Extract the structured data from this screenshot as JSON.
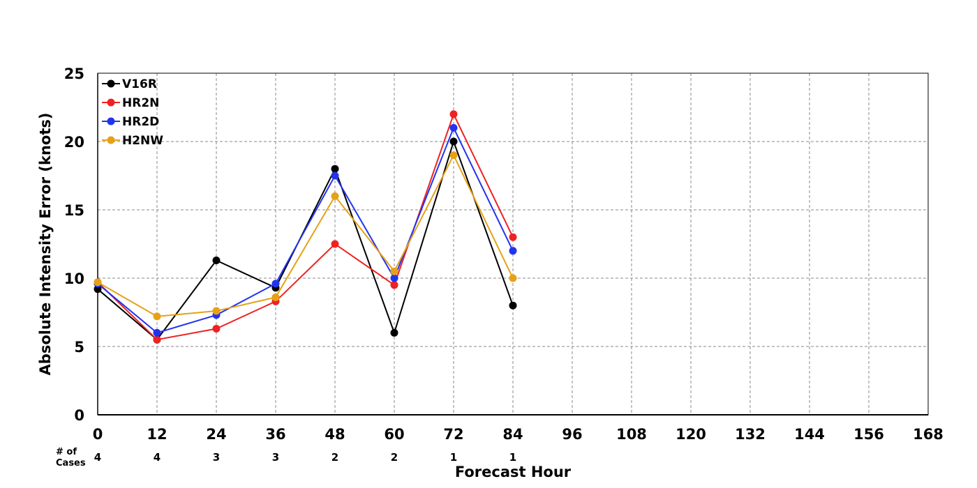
{
  "chart_data": {
    "type": "line",
    "title": "",
    "xlabel": "Forecast Hour",
    "ylabel": "Absolute Intensity Error (knots)",
    "xlim": [
      0,
      168
    ],
    "ylim": [
      0,
      25
    ],
    "x_ticks": [
      0,
      12,
      24,
      36,
      48,
      60,
      72,
      84,
      96,
      108,
      120,
      132,
      144,
      156,
      168
    ],
    "y_ticks": [
      0,
      5,
      10,
      15,
      20,
      25
    ],
    "grid": true,
    "legend_position": "top-left",
    "cases_title_line1": "# of",
    "cases_title_line2": "Cases",
    "cases": {
      "x": [
        0,
        12,
        24,
        36,
        48,
        60,
        72,
        84
      ],
      "values": [
        "4",
        "4",
        "3",
        "3",
        "2",
        "2",
        "1",
        "1"
      ]
    },
    "series": [
      {
        "name": "V16R",
        "color": "#000000",
        "x": [
          0,
          12,
          24,
          36,
          48,
          60,
          72,
          84
        ],
        "values": [
          9.2,
          5.5,
          11.3,
          9.3,
          18.0,
          6.0,
          20.0,
          8.0
        ]
      },
      {
        "name": "HR2N",
        "color": "#ee2222",
        "x": [
          0,
          12,
          24,
          36,
          48,
          60,
          72,
          84
        ],
        "values": [
          9.7,
          5.5,
          6.3,
          8.3,
          12.5,
          9.5,
          22.0,
          13.0
        ]
      },
      {
        "name": "HR2D",
        "color": "#2233ee",
        "x": [
          0,
          12,
          24,
          36,
          48,
          60,
          72,
          84
        ],
        "values": [
          9.6,
          6.0,
          7.3,
          9.6,
          17.5,
          10.0,
          21.0,
          12.0
        ]
      },
      {
        "name": "H2NW",
        "color": "#e6a117",
        "x": [
          0,
          12,
          24,
          36,
          48,
          60,
          72,
          84
        ],
        "values": [
          9.7,
          7.2,
          7.6,
          8.6,
          16.0,
          10.5,
          19.0,
          10.0
        ]
      }
    ]
  }
}
